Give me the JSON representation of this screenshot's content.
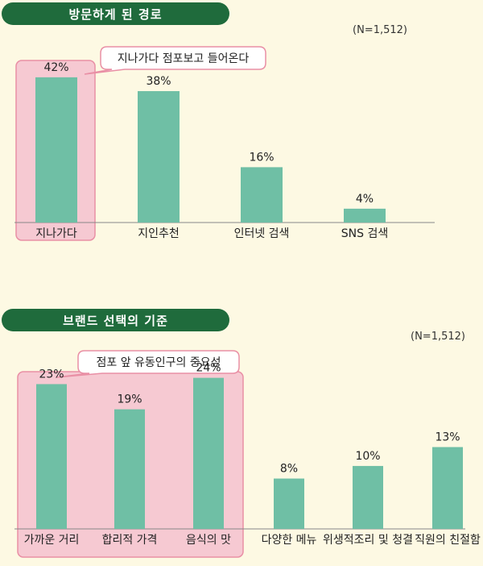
{
  "chart_data": [
    {
      "type": "bar",
      "title": "방문하게 된 경로",
      "note": "(N=1,512)",
      "categories": [
        "지나가다",
        "지인추천",
        "인터넷 검색",
        "SNS 검색"
      ],
      "values": [
        42,
        38,
        16,
        4
      ],
      "value_labels": [
        "42%",
        "38%",
        "16%",
        "4%"
      ],
      "highlight_indices": [
        0
      ],
      "callout": "지나가다 점포보고 들어온다",
      "ylim": [
        0,
        45
      ],
      "bar_color": "#6fbfa5",
      "highlight_color": "#f6c9d2"
    },
    {
      "type": "bar",
      "title": "브랜드 선택의 기준",
      "note": "(N=1,512)",
      "categories": [
        "가까운 거리",
        "합리적 가격",
        "음식의 맛",
        "다양한 메뉴",
        "위생적조리 및 청결",
        "직원의 친절함"
      ],
      "values": [
        23,
        19,
        24,
        8,
        10,
        13
      ],
      "value_labels": [
        "23%",
        "19%",
        "24%",
        "8%",
        "10%",
        "13%"
      ],
      "highlight_indices": [
        0,
        1,
        2
      ],
      "callout": "점포 앞 유동인구의 중요성",
      "ylim": [
        0,
        26
      ],
      "bar_color": "#6fbfa5",
      "highlight_color": "#f6c9d2"
    }
  ]
}
